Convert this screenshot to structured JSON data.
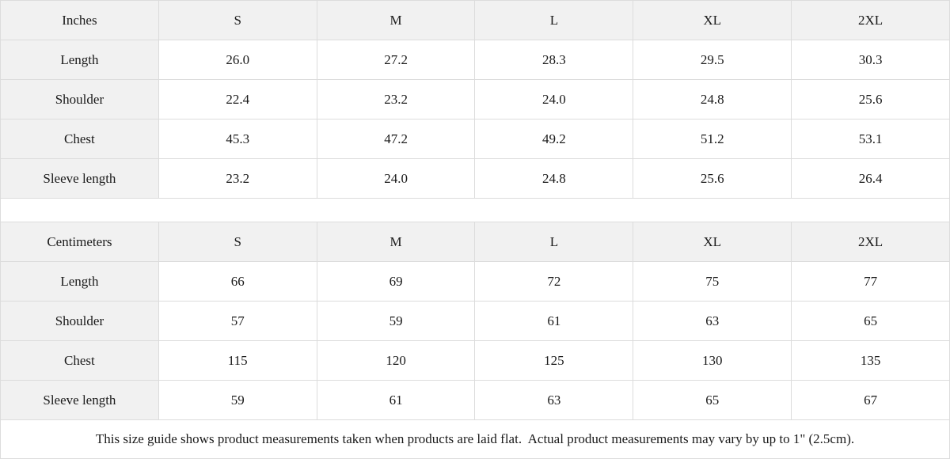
{
  "colors": {
    "header_cell_bg": "#f1f1f1",
    "border": "#dcdcdc",
    "text": "#1a1a1a",
    "background": "#ffffff"
  },
  "tables": [
    {
      "name": "inches",
      "header": [
        "Inches",
        "S",
        "M",
        "L",
        "XL",
        "2XL"
      ],
      "rows": [
        {
          "label": "Length",
          "values": [
            "26.0",
            "27.2",
            "28.3",
            "29.5",
            "30.3"
          ]
        },
        {
          "label": "Shoulder",
          "values": [
            "22.4",
            "23.2",
            "24.0",
            "24.8",
            "25.6"
          ]
        },
        {
          "label": "Chest",
          "values": [
            "45.3",
            "47.2",
            "49.2",
            "51.2",
            "53.1"
          ]
        },
        {
          "label": "Sleeve length",
          "values": [
            "23.2",
            "24.0",
            "24.8",
            "25.6",
            "26.4"
          ]
        }
      ]
    },
    {
      "name": "centimeters",
      "header": [
        "Centimeters",
        "S",
        "M",
        "L",
        "XL",
        "2XL"
      ],
      "rows": [
        {
          "label": "Length",
          "values": [
            "66",
            "69",
            "72",
            "75",
            "77"
          ]
        },
        {
          "label": "Shoulder",
          "values": [
            "57",
            "59",
            "61",
            "63",
            "65"
          ]
        },
        {
          "label": "Chest",
          "values": [
            "115",
            "120",
            "125",
            "130",
            "135"
          ]
        },
        {
          "label": "Sleeve length",
          "values": [
            "59",
            "61",
            "63",
            "65",
            "67"
          ]
        }
      ]
    }
  ],
  "footer": {
    "note": "This size guide shows product measurements taken when products are laid flat.  Actual product measurements may vary by up to 1\" (2.5cm)."
  }
}
